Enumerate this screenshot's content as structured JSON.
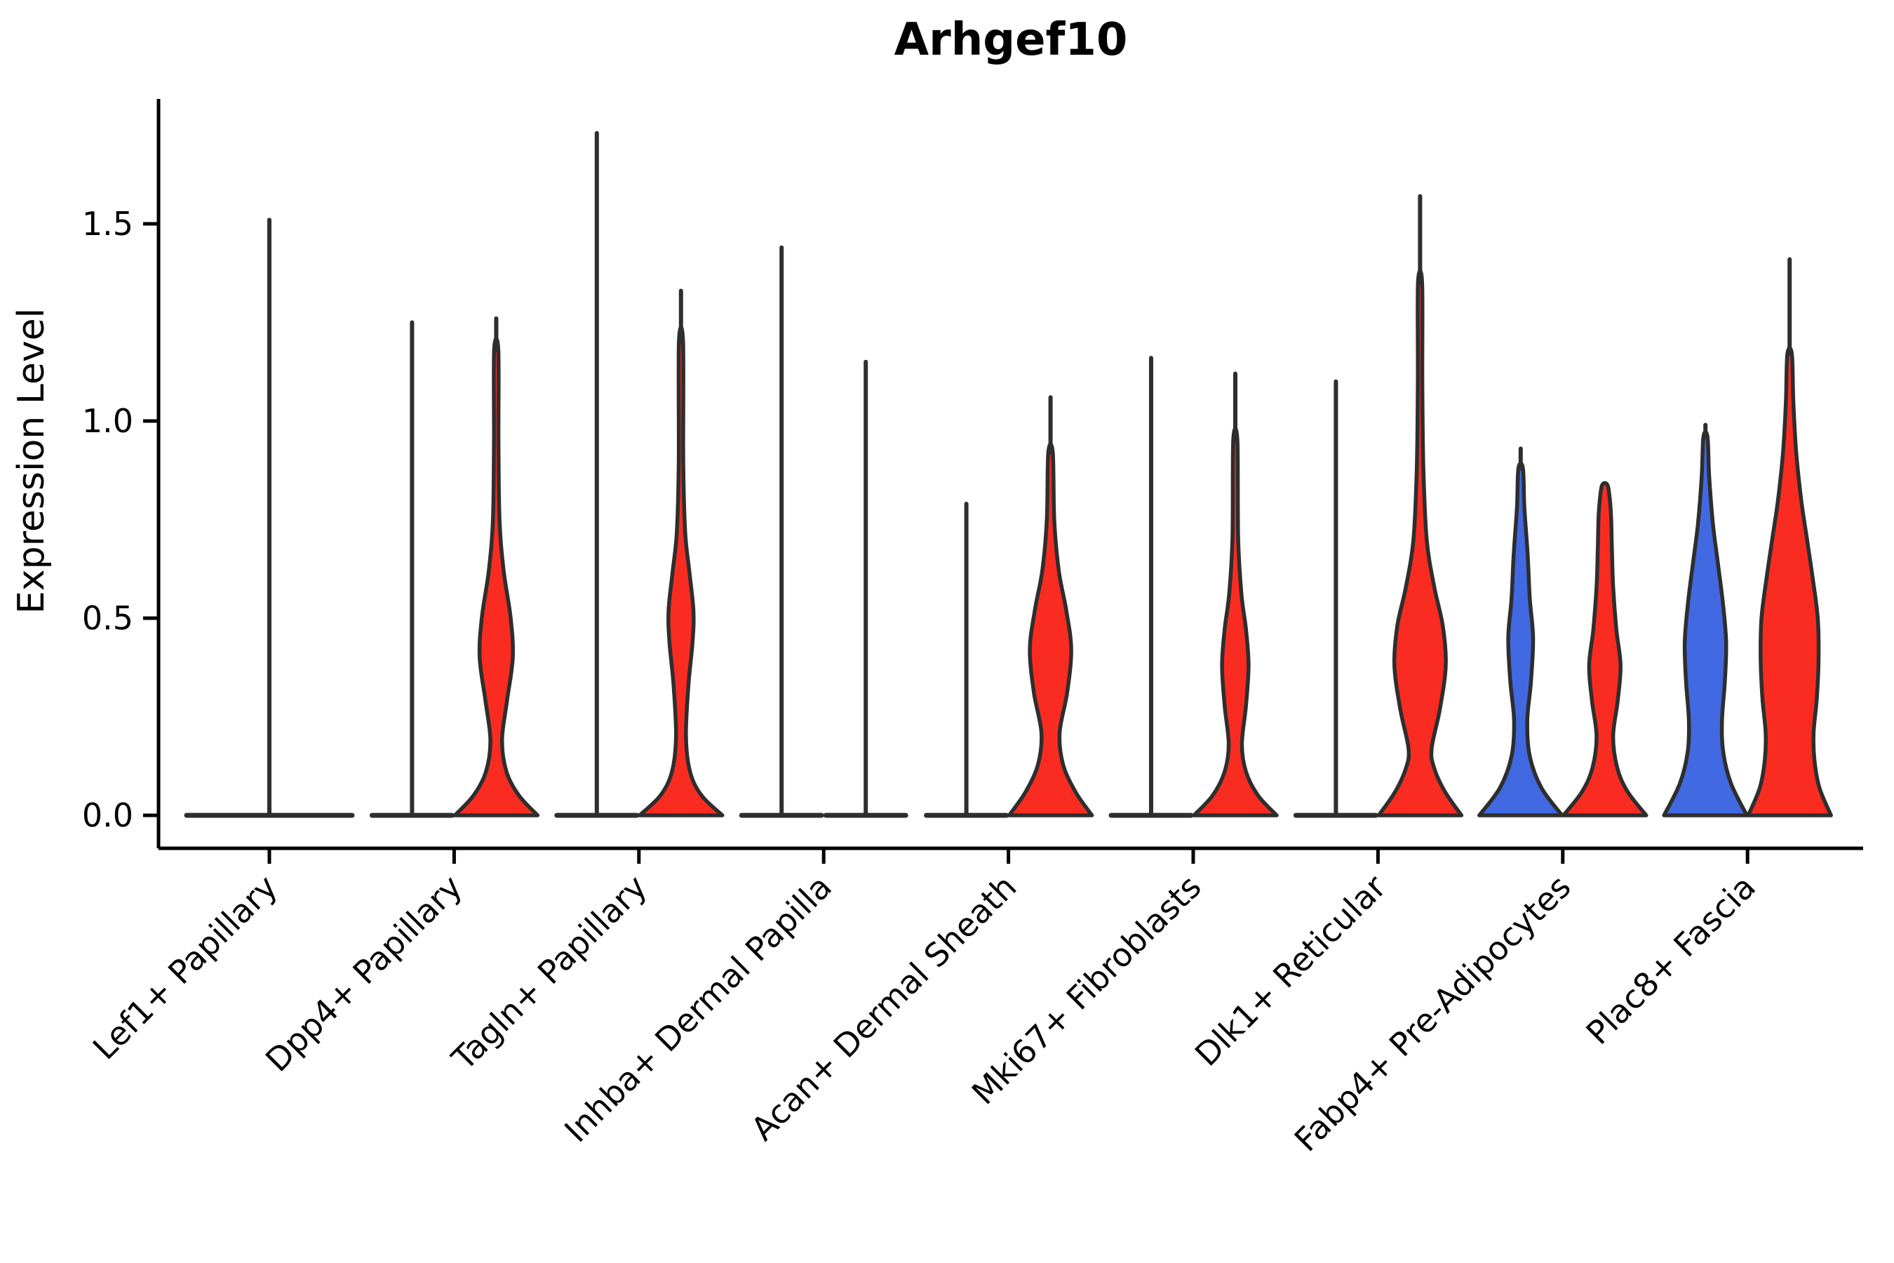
{
  "page": {
    "background": "#ffffff"
  },
  "chart_data": {
    "type": "violin",
    "title": "Arhgef10",
    "ylabel": "Expression Level",
    "xlabel": "",
    "y_ticks": [
      0.0,
      0.5,
      1.0,
      1.5
    ],
    "ylim": [
      -0.09,
      1.82
    ],
    "grid": false,
    "legend": "none",
    "outline_color": "#2e2e2e",
    "axis_color": "#000000",
    "palette": {
      "red": "#fa2c21",
      "blue": "#4169e1"
    },
    "categories": [
      {
        "label": "Lef1+ Papillary",
        "violins": [
          {
            "pos": "center",
            "width": "full",
            "shape": "flat",
            "max": 1.51,
            "color": null
          }
        ]
      },
      {
        "label": "Dpp4+ Papillary",
        "violins": [
          {
            "pos": "left",
            "shape": "flat",
            "max": 1.25,
            "color": null
          },
          {
            "pos": "right",
            "shape": "body",
            "max": 1.26,
            "color": "red",
            "profile": [
              [
                0,
                1.0
              ],
              [
                0.05,
                0.55
              ],
              [
                0.11,
                0.25
              ],
              [
                0.19,
                0.14
              ],
              [
                0.29,
                0.26
              ],
              [
                0.4,
                0.4
              ],
              [
                0.5,
                0.35
              ],
              [
                0.62,
                0.18
              ],
              [
                0.75,
                0.08
              ],
              [
                0.95,
                0.055
              ],
              [
                1.18,
                0.05
              ]
            ]
          }
        ]
      },
      {
        "label": "Tagln+ Papillary",
        "violins": [
          {
            "pos": "left",
            "shape": "flat",
            "max": 1.73,
            "color": null
          },
          {
            "pos": "right",
            "shape": "body",
            "max": 1.33,
            "color": "red",
            "profile": [
              [
                0,
                1.0
              ],
              [
                0.05,
                0.5
              ],
              [
                0.11,
                0.22
              ],
              [
                0.2,
                0.12
              ],
              [
                0.33,
                0.18
              ],
              [
                0.44,
                0.28
              ],
              [
                0.52,
                0.3
              ],
              [
                0.62,
                0.2
              ],
              [
                0.72,
                0.1
              ],
              [
                0.9,
                0.055
              ],
              [
                1.2,
                0.05
              ]
            ]
          }
        ]
      },
      {
        "label": "Inhba+ Dermal Papilla",
        "violins": [
          {
            "pos": "left",
            "shape": "flat",
            "max": 1.44,
            "color": null
          },
          {
            "pos": "right",
            "shape": "flat",
            "max": 1.15,
            "color": null
          }
        ]
      },
      {
        "label": "Acan+ Dermal Sheath",
        "violins": [
          {
            "pos": "left",
            "shape": "flat",
            "max": 0.79,
            "color": null
          },
          {
            "pos": "right",
            "shape": "body",
            "max": 1.06,
            "color": "red",
            "profile": [
              [
                0,
                1.0
              ],
              [
                0.06,
                0.6
              ],
              [
                0.13,
                0.3
              ],
              [
                0.21,
                0.22
              ],
              [
                0.31,
                0.4
              ],
              [
                0.42,
                0.5
              ],
              [
                0.52,
                0.38
              ],
              [
                0.62,
                0.2
              ],
              [
                0.75,
                0.09
              ],
              [
                0.92,
                0.055
              ]
            ]
          }
        ]
      },
      {
        "label": "Mki67+ Fibroblasts",
        "violins": [
          {
            "pos": "left",
            "shape": "flat",
            "max": 1.16,
            "color": null
          },
          {
            "pos": "right",
            "shape": "body",
            "max": 1.12,
            "color": "red",
            "profile": [
              [
                0,
                1.0
              ],
              [
                0.05,
                0.55
              ],
              [
                0.11,
                0.26
              ],
              [
                0.18,
                0.16
              ],
              [
                0.28,
                0.26
              ],
              [
                0.38,
                0.32
              ],
              [
                0.47,
                0.26
              ],
              [
                0.56,
                0.15
              ],
              [
                0.7,
                0.07
              ],
              [
                0.95,
                0.05
              ]
            ]
          }
        ]
      },
      {
        "label": "Dlk1+ Reticular",
        "violins": [
          {
            "pos": "left",
            "shape": "flat",
            "max": 1.1,
            "color": null
          },
          {
            "pos": "right",
            "shape": "body",
            "max": 1.57,
            "color": "red",
            "profile": [
              [
                0,
                1.0
              ],
              [
                0.06,
                0.6
              ],
              [
                0.12,
                0.34
              ],
              [
                0.17,
                0.28
              ],
              [
                0.27,
                0.48
              ],
              [
                0.38,
                0.62
              ],
              [
                0.48,
                0.55
              ],
              [
                0.58,
                0.34
              ],
              [
                0.7,
                0.16
              ],
              [
                0.88,
                0.08
              ],
              [
                1.1,
                0.055
              ],
              [
                1.35,
                0.05
              ]
            ]
          }
        ]
      },
      {
        "label": "Fabp4+ Pre-Adipocytes",
        "violins": [
          {
            "pos": "left",
            "shape": "body",
            "max": 0.93,
            "color": "blue",
            "profile": [
              [
                0,
                1.0
              ],
              [
                0.07,
                0.5
              ],
              [
                0.15,
                0.22
              ],
              [
                0.24,
                0.16
              ],
              [
                0.34,
                0.25
              ],
              [
                0.45,
                0.3
              ],
              [
                0.55,
                0.22
              ],
              [
                0.66,
                0.17
              ],
              [
                0.78,
                0.09
              ],
              [
                0.88,
                0.055
              ]
            ]
          },
          {
            "pos": "right",
            "shape": "body",
            "max": 0.84,
            "color": "red",
            "profile": [
              [
                0,
                1.0
              ],
              [
                0.06,
                0.55
              ],
              [
                0.12,
                0.3
              ],
              [
                0.2,
                0.2
              ],
              [
                0.29,
                0.31
              ],
              [
                0.38,
                0.38
              ],
              [
                0.47,
                0.28
              ],
              [
                0.58,
                0.2
              ],
              [
                0.68,
                0.17
              ],
              [
                0.76,
                0.15
              ],
              [
                0.82,
                0.1
              ],
              [
                0.84,
                0.05
              ]
            ]
          }
        ]
      },
      {
        "label": "Plac8+ Fascia",
        "violins": [
          {
            "pos": "left",
            "shape": "body",
            "max": 0.99,
            "color": "blue",
            "profile": [
              [
                0,
                1.0
              ],
              [
                0.08,
                0.62
              ],
              [
                0.16,
                0.43
              ],
              [
                0.24,
                0.4
              ],
              [
                0.34,
                0.47
              ],
              [
                0.44,
                0.5
              ],
              [
                0.54,
                0.42
              ],
              [
                0.64,
                0.3
              ],
              [
                0.74,
                0.18
              ],
              [
                0.86,
                0.09
              ],
              [
                0.96,
                0.05
              ]
            ]
          },
          {
            "pos": "right",
            "shape": "body",
            "max": 1.41,
            "color": "red",
            "profile": [
              [
                0,
                1.0
              ],
              [
                0.07,
                0.72
              ],
              [
                0.14,
                0.6
              ],
              [
                0.21,
                0.58
              ],
              [
                0.3,
                0.66
              ],
              [
                0.4,
                0.7
              ],
              [
                0.5,
                0.68
              ],
              [
                0.6,
                0.56
              ],
              [
                0.7,
                0.42
              ],
              [
                0.8,
                0.28
              ],
              [
                0.92,
                0.16
              ],
              [
                1.05,
                0.09
              ],
              [
                1.17,
                0.055
              ]
            ]
          }
        ]
      }
    ]
  }
}
